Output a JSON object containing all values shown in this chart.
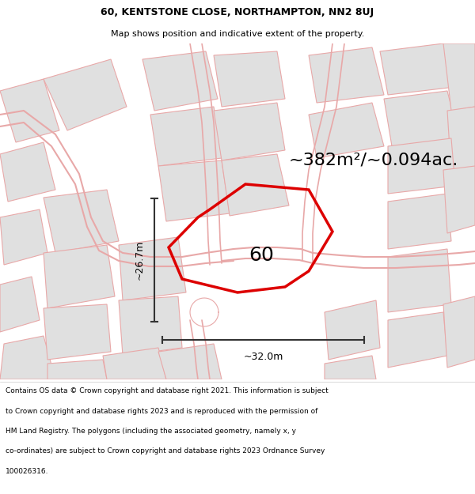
{
  "title_line1": "60, KENTSTONE CLOSE, NORTHAMPTON, NN2 8UJ",
  "title_line2": "Map shows position and indicative extent of the property.",
  "area_text": "~382m²/~0.094ac.",
  "number_label": "60",
  "dim_horiz": "~32.0m",
  "dim_vert": "~26.7m",
  "footer_lines": [
    "Contains OS data © Crown copyright and database right 2021. This information is subject",
    "to Crown copyright and database rights 2023 and is reproduced with the permission of",
    "HM Land Registry. The polygons (including the associated geometry, namely x, y",
    "co-ordinates) are subject to Crown copyright and database rights 2023 Ordnance Survey",
    "100026316."
  ],
  "bg_color": "#f2f0f0",
  "property_edge_color": "#dd0000",
  "property_fill": "#e8e8e8",
  "parcel_fill": "#e0e0e0",
  "parcel_edge": "#e8a8a8",
  "road_color": "#e8a8a8",
  "title_fontsize": 9,
  "subtitle_fontsize": 8,
  "area_fontsize": 16,
  "number_fontsize": 18,
  "dim_fontsize": 9,
  "footer_fontsize": 6.5
}
